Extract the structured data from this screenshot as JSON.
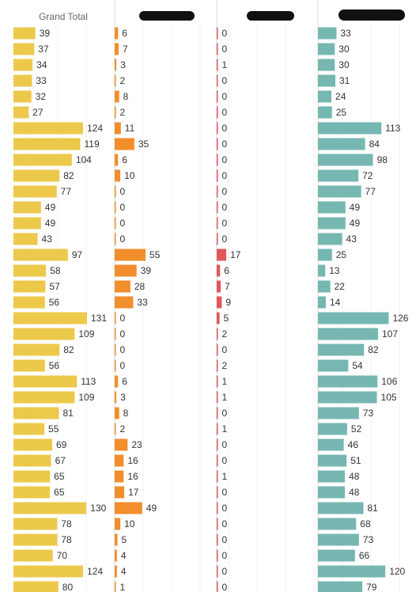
{
  "chart_data": {
    "type": "bar",
    "orientation": "horizontal",
    "grid": true,
    "colors": [
      "#ecc94b",
      "#f28e2b",
      "#e15759",
      "#76b7b2"
    ],
    "series": [
      {
        "name": "Grand Total",
        "values": [
          39,
          37,
          34,
          33,
          32,
          27,
          124,
          119,
          104,
          82,
          77,
          49,
          49,
          43,
          97,
          58,
          57,
          56,
          131,
          109,
          82,
          56,
          113,
          109,
          81,
          55,
          69,
          67,
          65,
          65,
          130,
          78,
          78,
          70,
          124,
          80
        ]
      },
      {
        "name": "",
        "values": [
          6,
          7,
          3,
          2,
          8,
          2,
          11,
          35,
          6,
          10,
          0,
          0,
          0,
          0,
          55,
          39,
          28,
          33,
          0,
          0,
          0,
          0,
          6,
          3,
          8,
          2,
          23,
          16,
          16,
          17,
          49,
          10,
          5,
          4,
          4,
          1
        ]
      },
      {
        "name": "",
        "values": [
          0,
          0,
          1,
          0,
          0,
          0,
          0,
          0,
          0,
          0,
          0,
          0,
          0,
          0,
          17,
          6,
          7,
          9,
          5,
          2,
          0,
          2,
          1,
          1,
          0,
          1,
          0,
          0,
          1,
          0,
          0,
          0,
          0,
          0,
          0,
          0
        ]
      },
      {
        "name": "",
        "values": [
          33,
          30,
          30,
          31,
          24,
          25,
          113,
          84,
          98,
          72,
          77,
          49,
          49,
          43,
          25,
          13,
          22,
          14,
          126,
          107,
          82,
          54,
          106,
          105,
          73,
          52,
          46,
          51,
          48,
          48,
          81,
          68,
          73,
          66,
          120,
          79
        ]
      }
    ]
  }
}
